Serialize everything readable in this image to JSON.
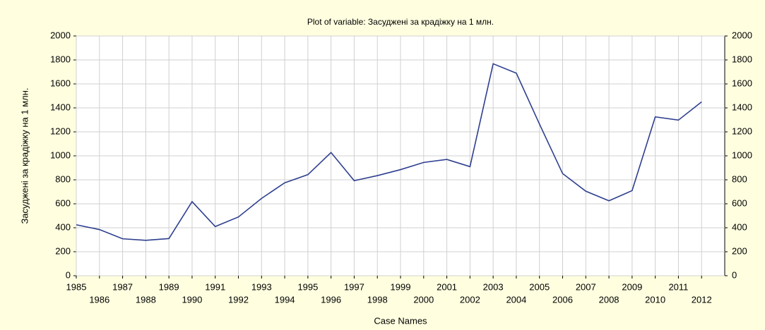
{
  "chart_data": {
    "type": "line",
    "title": "Plot of variable: Засуджені за крадіжку на 1 млн.",
    "ylabel": "Засуджені за крадіжку на 1 млн.",
    "xlabel": "Case Names",
    "x": [
      1985,
      1986,
      1987,
      1988,
      1989,
      1990,
      1991,
      1992,
      1993,
      1994,
      1995,
      1996,
      1997,
      1998,
      1999,
      2000,
      2001,
      2002,
      2003,
      2004,
      2005,
      2006,
      2007,
      2008,
      2009,
      2010,
      2011,
      2012
    ],
    "series": [
      {
        "name": "Засуджені за крадіжку на 1 млн.",
        "color": "#2e3f8f",
        "values": [
          425,
          385,
          308,
          295,
          310,
          618,
          410,
          490,
          645,
          775,
          843,
          1028,
          793,
          835,
          885,
          945,
          970,
          910,
          1768,
          1690,
          1265,
          852,
          705,
          625,
          710,
          1325,
          1298,
          1450
        ]
      }
    ],
    "xlim": [
      1985,
      2013
    ],
    "xticks": [
      1985,
      1986,
      1987,
      1988,
      1989,
      1990,
      1991,
      1992,
      1993,
      1994,
      1995,
      1996,
      1997,
      1998,
      1999,
      2000,
      2001,
      2002,
      2003,
      2004,
      2005,
      2006,
      2007,
      2008,
      2009,
      2010,
      2011,
      2012
    ],
    "ylim": [
      0,
      2000
    ],
    "yticks": [
      0,
      200,
      400,
      600,
      800,
      1000,
      1200,
      1400,
      1600,
      1800,
      2000
    ],
    "y2lim": [
      0,
      2000
    ],
    "y2ticks": [
      0,
      200,
      400,
      600,
      800,
      1000,
      1200,
      1400,
      1600,
      1800,
      2000
    ],
    "grid": true
  }
}
